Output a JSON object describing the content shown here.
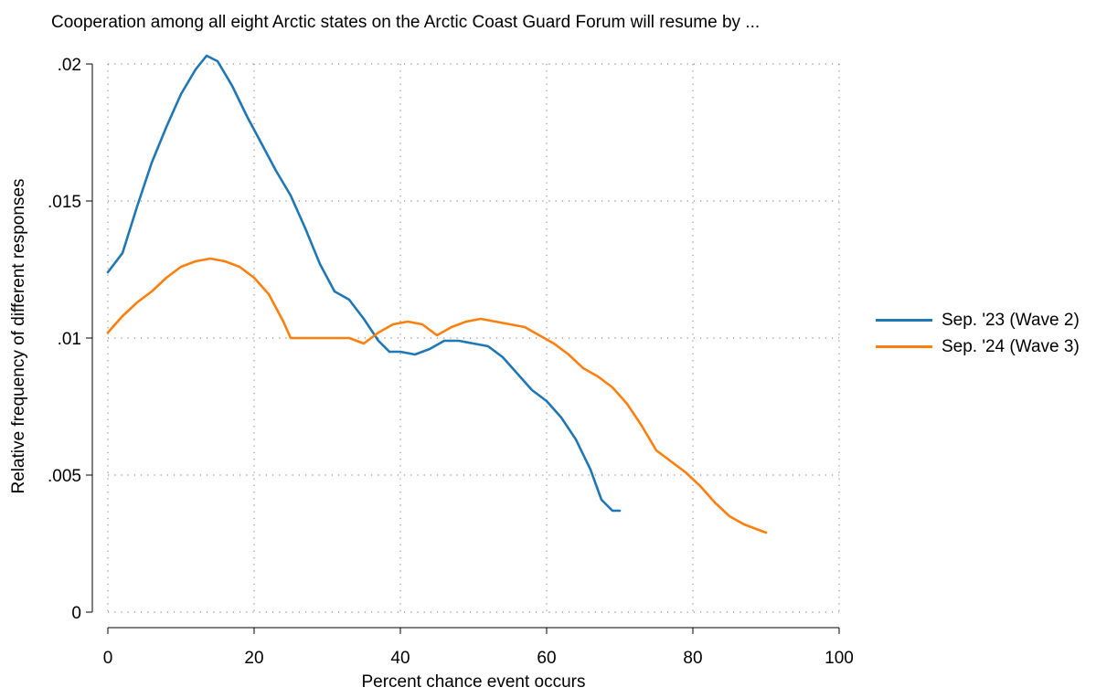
{
  "chart_data": {
    "type": "line",
    "title": "Cooperation among all eight Arctic states on the Arctic Coast Guard Forum will resume by ...",
    "xlabel": "Percent chance event occurs",
    "ylabel": "Relative frequency of different responses",
    "xlim": [
      0,
      100
    ],
    "ylim": [
      0,
      0.02
    ],
    "xticks": [
      0,
      20,
      40,
      60,
      80,
      100
    ],
    "xtick_labels": [
      "0",
      "20",
      "40",
      "60",
      "80",
      "100"
    ],
    "yticks": [
      0,
      0.005,
      0.01,
      0.015,
      0.02
    ],
    "ytick_labels": [
      "0",
      ".005",
      ".01",
      ".015",
      ".02"
    ],
    "grid": true,
    "legend_position": "right",
    "series": [
      {
        "name": "Sep. '23 (Wave 2)",
        "color": "#1f77b4",
        "x": [
          0,
          2,
          4,
          6,
          8,
          10,
          12,
          13.5,
          15,
          17,
          19,
          21,
          23,
          25,
          27,
          29,
          31,
          33,
          35,
          37,
          38.5,
          40,
          42,
          44,
          46,
          48,
          50,
          52,
          54,
          56,
          58,
          60,
          62,
          64,
          66,
          67.5,
          69,
          70
        ],
        "y": [
          0.0124,
          0.0131,
          0.0148,
          0.0164,
          0.0177,
          0.0189,
          0.0198,
          0.0203,
          0.0201,
          0.0192,
          0.0181,
          0.0171,
          0.0161,
          0.0152,
          0.014,
          0.0127,
          0.0117,
          0.0114,
          0.0107,
          0.0099,
          0.0095,
          0.0095,
          0.0094,
          0.0096,
          0.0099,
          0.0099,
          0.0098,
          0.0097,
          0.0093,
          0.0087,
          0.0081,
          0.0077,
          0.0071,
          0.0063,
          0.0052,
          0.0041,
          0.0037,
          0.0037
        ]
      },
      {
        "name": "Sep. '24 (Wave 3)",
        "color": "#ff7f0e",
        "x": [
          0,
          2,
          4,
          6,
          8,
          10,
          12,
          14,
          16,
          18,
          20,
          22,
          24,
          25,
          27,
          29,
          31,
          33,
          35,
          37,
          39,
          41,
          43,
          45,
          47,
          49,
          51,
          53,
          55,
          57,
          59,
          61,
          63,
          65,
          67,
          69,
          71,
          73,
          75,
          77,
          79,
          81,
          83,
          85,
          87,
          89,
          90
        ],
        "y": [
          0.0102,
          0.0108,
          0.0113,
          0.0117,
          0.0122,
          0.0126,
          0.0128,
          0.0129,
          0.0128,
          0.0126,
          0.0122,
          0.0116,
          0.0106,
          0.01,
          0.01,
          0.01,
          0.01,
          0.01,
          0.0098,
          0.0102,
          0.0105,
          0.0106,
          0.0105,
          0.0101,
          0.0104,
          0.0106,
          0.0107,
          0.0106,
          0.0105,
          0.0104,
          0.0101,
          0.0098,
          0.0094,
          0.0089,
          0.0086,
          0.0082,
          0.0076,
          0.0068,
          0.0059,
          0.0055,
          0.0051,
          0.0046,
          0.004,
          0.0035,
          0.0032,
          0.003,
          0.0029
        ]
      }
    ]
  }
}
